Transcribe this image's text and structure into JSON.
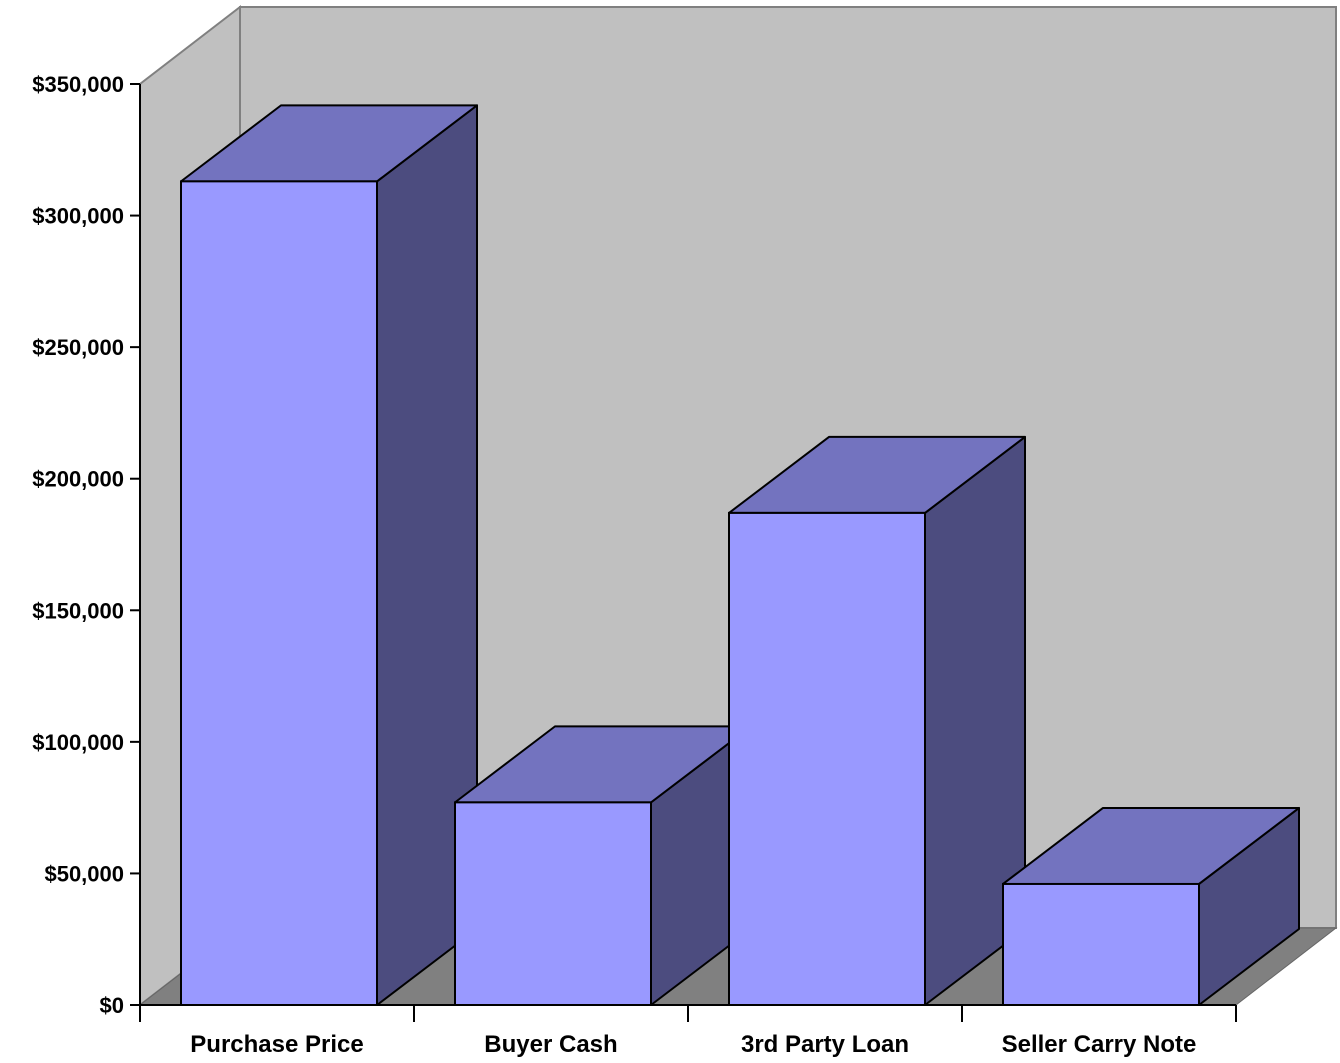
{
  "chart_data": {
    "type": "bar",
    "style": "3d-column",
    "categories": [
      "Purchase Price",
      "Buyer Cash",
      "3rd Party Loan",
      "Seller Carry Note"
    ],
    "values": [
      313000,
      77000,
      187000,
      46000
    ],
    "ylim": [
      0,
      350000
    ],
    "yticks": [
      0,
      50000,
      100000,
      150000,
      200000,
      250000,
      300000,
      350000
    ],
    "ytick_labels": [
      "$0",
      "$50,000",
      "$100,000",
      "$150,000",
      "$200,000",
      "$250,000",
      "$300,000",
      "$350,000"
    ],
    "title": "",
    "xlabel": "",
    "ylabel": "",
    "grid": false,
    "legend": "none",
    "colors": {
      "bar_front": "#9999ff",
      "bar_top": "#7373bf",
      "bar_side": "#4c4c7f",
      "back_wall": "#c0c0c0",
      "floor": "#808080",
      "outline": "#000000"
    }
  }
}
